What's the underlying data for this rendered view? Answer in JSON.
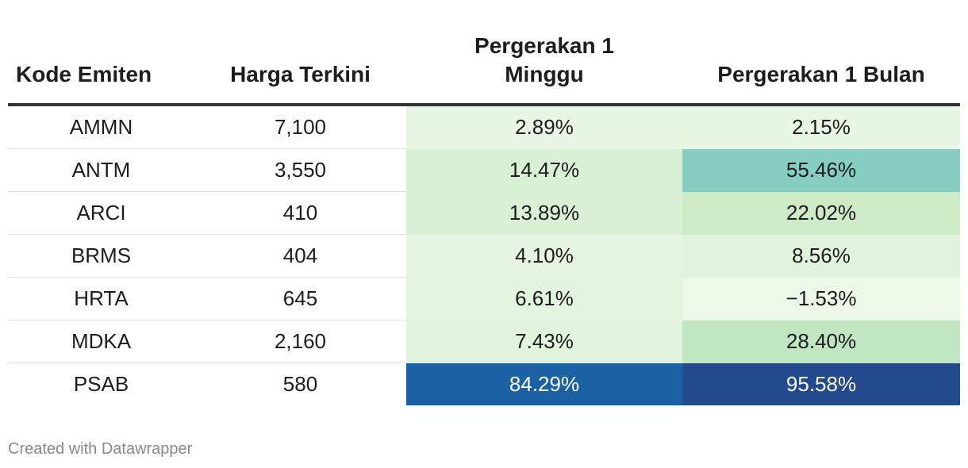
{
  "chart_data": {
    "type": "table",
    "columns": [
      "Kode Emiten",
      "Harga Terkini",
      "Pergerakan 1 Minggu",
      "Pergerakan 1 Bulan"
    ],
    "rows": [
      [
        "AMMN",
        "7,100",
        "2.89%",
        "2.15%"
      ],
      [
        "ANTM",
        "3,550",
        "14.47%",
        "55.46%"
      ],
      [
        "ARCI",
        "410",
        "13.89%",
        "22.02%"
      ],
      [
        "BRMS",
        "404",
        "4.10%",
        "8.56%"
      ],
      [
        "HRTA",
        "645",
        "6.61%",
        "−1.53%"
      ],
      [
        "MDKA",
        "2,160",
        "7.43%",
        "28.40%"
      ],
      [
        "PSAB",
        "580",
        "84.29%",
        "95.58%"
      ]
    ],
    "heatmap_values": {
      "Pergerakan 1 Minggu": [
        2.89,
        14.47,
        13.89,
        4.1,
        6.61,
        7.43,
        84.29
      ],
      "Pergerakan 1 Bulan": [
        2.15,
        55.46,
        22.02,
        8.56,
        -1.53,
        28.4,
        95.58
      ]
    },
    "heatmap_colors": [
      "#edf8e9",
      "#def2da",
      "#cbebc5",
      "#b5e2be",
      "#9dd8c2",
      "#7ecac2",
      "#3d99c8",
      "#1a64a6",
      "#234a8e"
    ],
    "light_text_color": "#ffffff",
    "dark_text_color": "#1d1d1d"
  },
  "footer": {
    "credit": "Created with Datawrapper"
  }
}
